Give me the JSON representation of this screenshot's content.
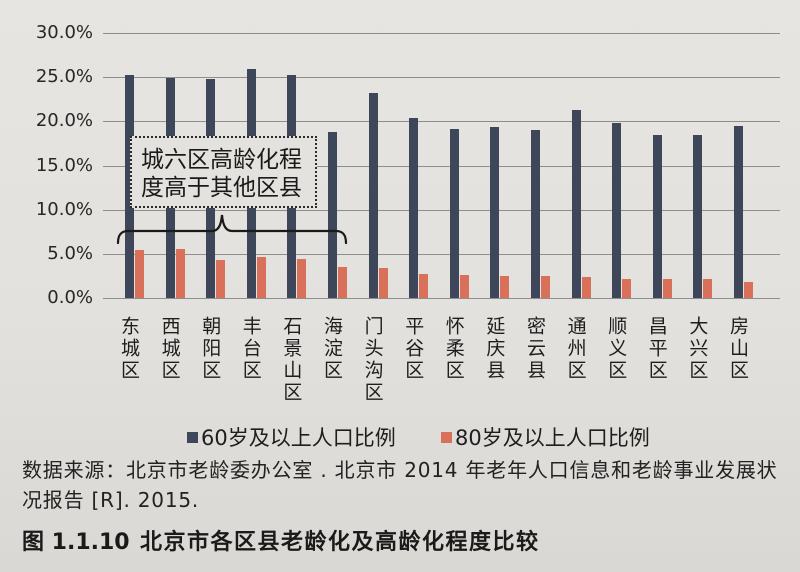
{
  "chart_data": {
    "type": "bar",
    "figure_number": "图 1.1.10",
    "title": "北京市各区县老龄化及高龄化程度比较",
    "ylim": [
      0,
      30
    ],
    "ytick_values": [
      0,
      5,
      10,
      15,
      20,
      25,
      30
    ],
    "ytick_labels": [
      "0.0%",
      "5.0%",
      "10.0%",
      "15.0%",
      "20.0%",
      "25.0%",
      "30.0%"
    ],
    "y_unit": "%",
    "grid": true,
    "legend_position": "bottom",
    "categories": [
      "东城区",
      "西城区",
      "朝阳区",
      "丰台区",
      "石景山区",
      "海淀区",
      "门头沟区",
      "平谷区",
      "怀柔区",
      "延庆县",
      "密云县",
      "通州区",
      "顺义区",
      "昌平区",
      "大兴区",
      "房山区"
    ],
    "series": [
      {
        "name": "60岁及以上人口比例",
        "color": "#3d4759",
        "values": [
          25.3,
          24.9,
          24.8,
          25.9,
          25.3,
          18.8,
          23.2,
          20.4,
          19.1,
          19.4,
          19.0,
          21.3,
          19.8,
          18.5,
          18.4,
          19.5
        ]
      },
      {
        "name": "80岁及以上人口比例",
        "color": "#d8705a",
        "values": [
          5.4,
          5.5,
          4.3,
          4.6,
          4.4,
          3.5,
          3.4,
          2.7,
          2.6,
          2.5,
          2.5,
          2.4,
          2.2,
          2.2,
          2.2,
          1.8
        ]
      }
    ],
    "annotations": [
      {
        "lines": [
          "城六区高龄化程",
          "度高于其他区县"
        ]
      }
    ]
  },
  "source": {
    "line1": "数据来源：北京市老龄委办公室 . 北京市 2014 年老年人口信息和老龄事业发展状",
    "line2": "况报告 [R]. 2015."
  }
}
